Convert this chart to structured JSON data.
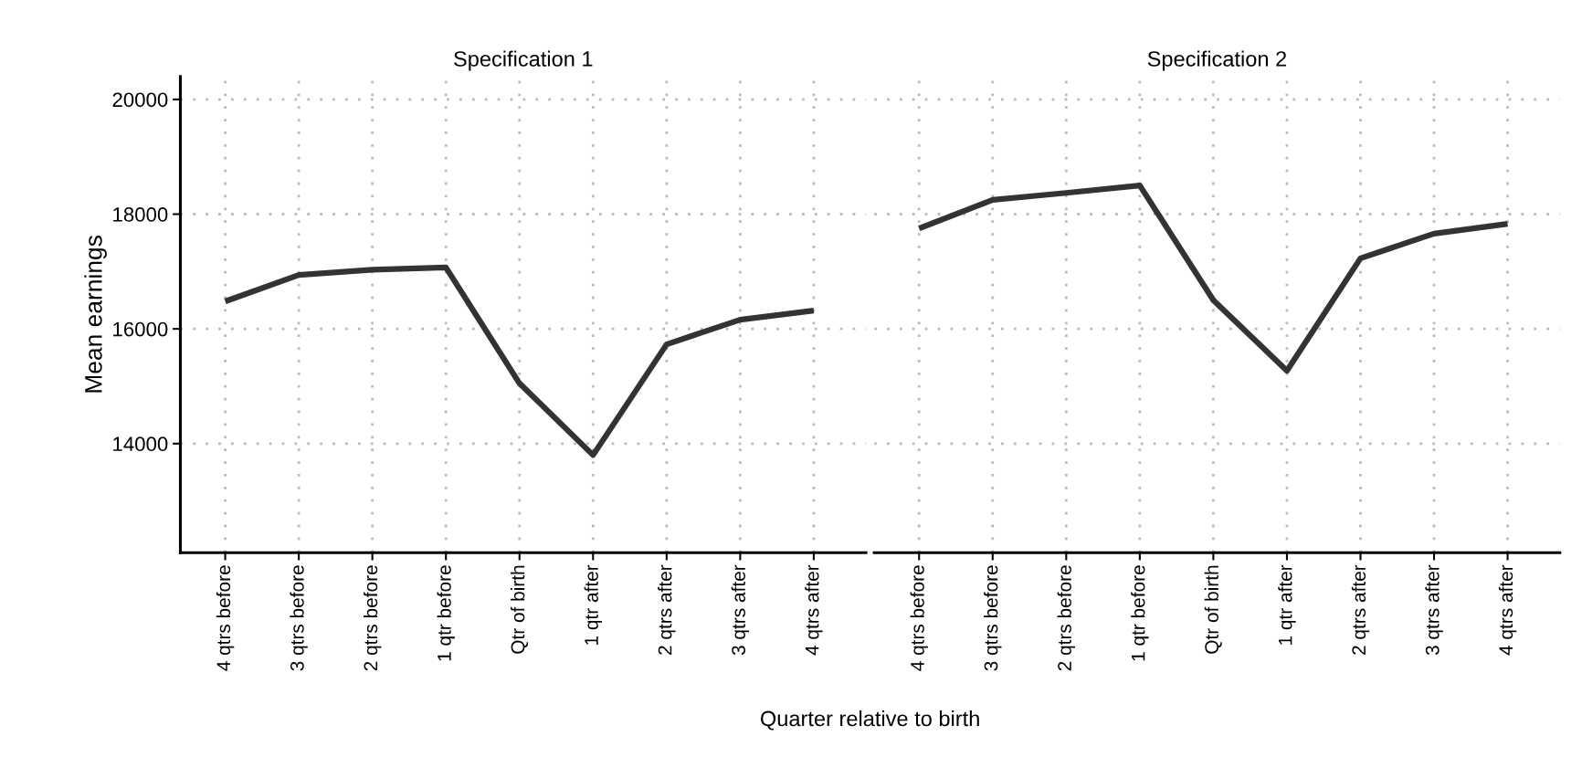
{
  "chart_data": [
    {
      "type": "line",
      "title": "Specification 1",
      "xlabel": "Quarter relative to birth",
      "ylabel": "Mean earnings",
      "categories": [
        "4 qtrs before",
        "3 qtrs before",
        "2 qtrs before",
        "1 qtr before",
        "Qtr of birth",
        "1 qtr after",
        "2 qtrs after",
        "3 qtrs after",
        "4 qtrs after"
      ],
      "series": [
        {
          "color": "#333333",
          "values": [
            16480,
            16940,
            17030,
            17070,
            15050,
            13800,
            15730,
            16160,
            16320
          ]
        }
      ],
      "ylim": [
        12100,
        20400
      ],
      "yticks": [
        14000,
        16000,
        18000,
        20000
      ],
      "grid": true,
      "line_style": "solid"
    },
    {
      "type": "line",
      "title": "Specification 2",
      "categories": [
        "4 qtrs before",
        "3 qtrs before",
        "2 qtrs before",
        "1 qtr before",
        "Qtr of birth",
        "1 qtr after",
        "2 qtrs after",
        "3 qtrs after",
        "4 qtrs after"
      ],
      "series": [
        {
          "color": "#333333",
          "values": [
            17750,
            18250,
            18370,
            18500,
            16500,
            15270,
            17230,
            17660,
            17830
          ]
        }
      ],
      "ylim": [
        12100,
        20400
      ],
      "yticks": [
        14000,
        16000,
        18000,
        20000
      ],
      "grid": true,
      "line_style": "solid",
      "tick_labels": "x"
    }
  ]
}
